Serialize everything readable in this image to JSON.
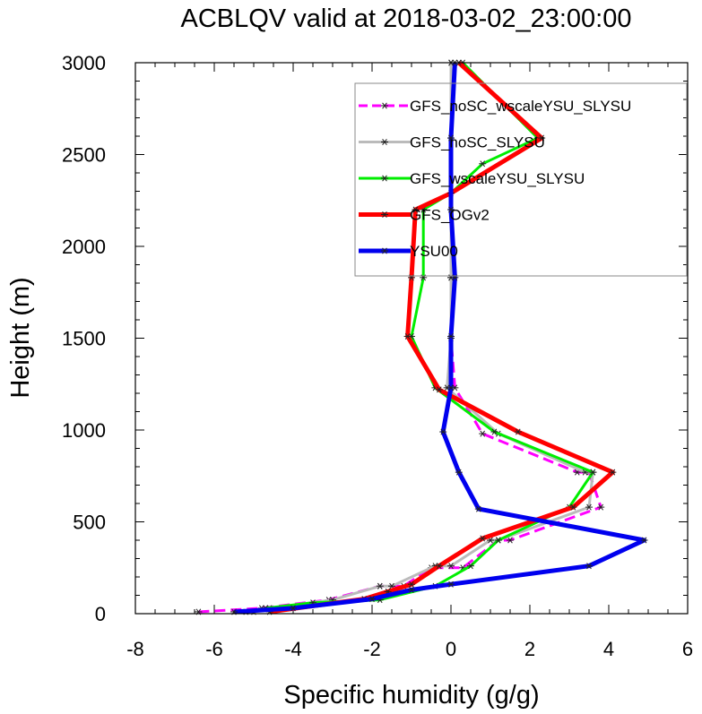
{
  "chart_data": {
    "type": "line",
    "title": "ACBLQV valid at 2018-03-02_23:00:00",
    "xlabel": "Specific humidity (g/g)",
    "ylabel": "Height (m)",
    "xlim": [
      -8,
      6
    ],
    "ylim": [
      0,
      3000
    ],
    "xticks": [
      -8,
      -6,
      -4,
      -2,
      0,
      2,
      4,
      6
    ],
    "yticks": [
      0,
      500,
      1000,
      1500,
      2000,
      2500,
      3000
    ],
    "xtick_labels": [
      "-8",
      "-6",
      "-4",
      "-2",
      "0",
      "2",
      "4",
      "6"
    ],
    "ytick_labels": [
      "0",
      "500",
      "1000",
      "1500",
      "2000",
      "2500",
      "3000"
    ],
    "legend_position": "top-right",
    "series": [
      {
        "name": "GFS_noSC_wscaleYSU_SLYSU",
        "color": "#ff00ff",
        "dashed": true,
        "width": 3,
        "points": [
          [
            -6.4,
            10
          ],
          [
            -4.8,
            30
          ],
          [
            -3.1,
            75
          ],
          [
            -1.8,
            150
          ],
          [
            -1.2,
            150
          ],
          [
            -0.5,
            250
          ],
          [
            0.3,
            250
          ],
          [
            1.2,
            400
          ],
          [
            1.5,
            400
          ],
          [
            3.8,
            580
          ],
          [
            3.5,
            770
          ],
          [
            3.2,
            770
          ],
          [
            0.8,
            980
          ],
          [
            0.1,
            1230
          ],
          [
            0.0,
            1500
          ],
          [
            0.0,
            1830
          ],
          [
            0.0,
            2200
          ],
          [
            0.0,
            2590
          ],
          [
            0.0,
            3000
          ]
        ]
      },
      {
        "name": "GFS_noSC_SLYSU",
        "color": "#bbbbbb",
        "dashed": false,
        "width": 3,
        "points": [
          [
            -5.2,
            10
          ],
          [
            -4.6,
            30
          ],
          [
            -3.0,
            75
          ],
          [
            -1.8,
            150
          ],
          [
            -1.5,
            150
          ],
          [
            -0.4,
            260
          ],
          [
            0.0,
            260
          ],
          [
            1.0,
            400
          ],
          [
            1.2,
            400
          ],
          [
            3.5,
            580
          ],
          [
            3.6,
            770
          ],
          [
            3.4,
            770
          ],
          [
            1.2,
            980
          ],
          [
            -0.1,
            1230
          ],
          [
            0.0,
            1500
          ],
          [
            0.0,
            1830
          ],
          [
            0.0,
            2200
          ],
          [
            0.0,
            2590
          ],
          [
            0.0,
            3000
          ]
        ]
      },
      {
        "name": "GFS_wscaleYSU_SLYSU",
        "color": "#00ee00",
        "dashed": false,
        "width": 3,
        "points": [
          [
            -5.0,
            10
          ],
          [
            -4.7,
            30
          ],
          [
            -3.5,
            60
          ],
          [
            -1.8,
            75
          ],
          [
            -0.4,
            150
          ],
          [
            0.5,
            260
          ],
          [
            1.2,
            400
          ],
          [
            3.0,
            580
          ],
          [
            3.6,
            770
          ],
          [
            1.1,
            990
          ],
          [
            -0.4,
            1230
          ],
          [
            -1.0,
            1510
          ],
          [
            -0.7,
            1830
          ],
          [
            -0.7,
            2200
          ],
          [
            0.0,
            2290
          ],
          [
            0.8,
            2450
          ],
          [
            2.2,
            2590
          ],
          [
            0.3,
            3000
          ]
        ]
      },
      {
        "name": "GFS_OGv2",
        "color": "#ff0000",
        "dashed": false,
        "width": 5,
        "points": [
          [
            -4.6,
            10
          ],
          [
            -2.2,
            80
          ],
          [
            -1.6,
            120
          ],
          [
            -1.0,
            160
          ],
          [
            -0.3,
            260
          ],
          [
            0.8,
            410
          ],
          [
            3.1,
            580
          ],
          [
            4.1,
            770
          ],
          [
            1.7,
            990
          ],
          [
            -0.3,
            1220
          ],
          [
            -1.1,
            1510
          ],
          [
            -1.0,
            1830
          ],
          [
            -0.9,
            2200
          ],
          [
            0.0,
            2290
          ],
          [
            2.3,
            2590
          ],
          [
            0.2,
            3000
          ]
        ]
      },
      {
        "name": "YSU00",
        "color": "#0000ee",
        "dashed": false,
        "width": 5,
        "points": [
          [
            -5.5,
            10
          ],
          [
            -4.0,
            30
          ],
          [
            -2.0,
            80
          ],
          [
            -1.0,
            130
          ],
          [
            0.0,
            160
          ],
          [
            3.5,
            260
          ],
          [
            4.9,
            400
          ],
          [
            0.7,
            570
          ],
          [
            0.2,
            770
          ],
          [
            -0.2,
            990
          ],
          [
            0.0,
            1230
          ],
          [
            0.0,
            1510
          ],
          [
            0.1,
            1830
          ],
          [
            0.0,
            2200
          ],
          [
            0.0,
            2590
          ],
          [
            0.1,
            3000
          ]
        ]
      }
    ]
  }
}
